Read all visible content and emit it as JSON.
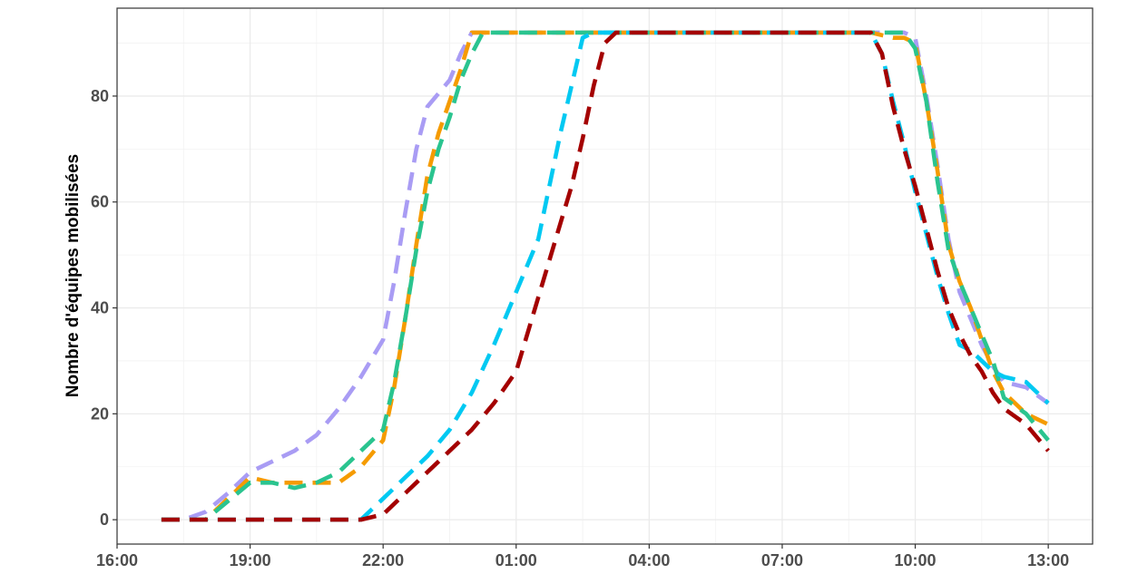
{
  "chart_data": {
    "type": "line",
    "title": "",
    "xlabel": "",
    "ylabel": "Nombre d'équipes mobilisées",
    "x_unit": "hours since 16:00 (x tick labels are clock times)",
    "x_ticks": [
      {
        "value": 0,
        "label": "16:00"
      },
      {
        "value": 3,
        "label": "19:00"
      },
      {
        "value": 6,
        "label": "22:00"
      },
      {
        "value": 9,
        "label": "01:00"
      },
      {
        "value": 12,
        "label": "04:00"
      },
      {
        "value": 15,
        "label": "07:00"
      },
      {
        "value": 18,
        "label": "10:00"
      },
      {
        "value": 21,
        "label": "13:00"
      }
    ],
    "xlim": [
      0,
      22
    ],
    "y_ticks": [
      0,
      20,
      40,
      60,
      80
    ],
    "ylim": [
      -4.6,
      96.6
    ],
    "grid": true,
    "legend": "none",
    "line_style": "dashed",
    "series": [
      {
        "color": "#a99cf4",
        "points": [
          [
            1,
            0
          ],
          [
            1.5,
            0
          ],
          [
            2,
            1.5
          ],
          [
            2.5,
            5
          ],
          [
            3,
            9
          ],
          [
            3.5,
            11
          ],
          [
            4,
            13
          ],
          [
            4.5,
            16
          ],
          [
            5,
            21
          ],
          [
            5.5,
            27
          ],
          [
            6,
            34
          ],
          [
            6.25,
            45
          ],
          [
            6.5,
            58
          ],
          [
            6.75,
            70
          ],
          [
            7,
            78
          ],
          [
            7.5,
            83
          ],
          [
            7.75,
            88
          ],
          [
            8,
            92
          ],
          [
            8.5,
            92
          ],
          [
            9,
            92
          ],
          [
            10,
            92
          ],
          [
            11,
            92
          ],
          [
            12,
            92
          ],
          [
            13,
            92
          ],
          [
            14,
            92
          ],
          [
            15,
            92
          ],
          [
            16,
            92
          ],
          [
            17,
            92
          ],
          [
            17.5,
            92
          ],
          [
            17.75,
            92
          ],
          [
            18,
            91
          ],
          [
            18.25,
            80
          ],
          [
            18.5,
            67
          ],
          [
            18.75,
            53
          ],
          [
            19,
            43
          ],
          [
            19.25,
            38
          ],
          [
            19.5,
            33
          ],
          [
            19.75,
            29
          ],
          [
            20,
            26
          ],
          [
            20.5,
            25
          ],
          [
            21,
            22
          ]
        ]
      },
      {
        "color": "#f59b00",
        "points": [
          [
            1,
            0
          ],
          [
            1.5,
            0
          ],
          [
            2,
            0
          ],
          [
            2.5,
            4
          ],
          [
            3,
            8
          ],
          [
            3.5,
            7
          ],
          [
            4,
            7
          ],
          [
            4.5,
            7
          ],
          [
            5,
            7
          ],
          [
            5.5,
            10
          ],
          [
            6,
            15
          ],
          [
            6.25,
            25
          ],
          [
            6.5,
            38
          ],
          [
            6.75,
            52
          ],
          [
            7,
            65
          ],
          [
            7.25,
            73
          ],
          [
            7.5,
            79
          ],
          [
            7.75,
            85
          ],
          [
            8,
            92
          ],
          [
            8.5,
            92
          ],
          [
            9,
            92
          ],
          [
            10,
            92
          ],
          [
            11,
            92
          ],
          [
            12,
            92
          ],
          [
            13,
            92
          ],
          [
            14,
            92
          ],
          [
            15,
            92
          ],
          [
            16,
            92
          ],
          [
            17,
            92
          ],
          [
            17.5,
            91
          ],
          [
            17.75,
            91
          ],
          [
            18,
            90
          ],
          [
            18.25,
            79
          ],
          [
            18.5,
            66
          ],
          [
            18.75,
            52
          ],
          [
            19,
            45
          ],
          [
            19.25,
            40
          ],
          [
            19.5,
            34
          ],
          [
            19.75,
            28
          ],
          [
            20,
            24
          ],
          [
            20.5,
            20
          ],
          [
            21,
            18
          ]
        ]
      },
      {
        "color": "#2ac48f",
        "points": [
          [
            1,
            0
          ],
          [
            1.5,
            0
          ],
          [
            2,
            0
          ],
          [
            2.5,
            3.5
          ],
          [
            3,
            7
          ],
          [
            3.5,
            7
          ],
          [
            4,
            6
          ],
          [
            4.5,
            7
          ],
          [
            5,
            9
          ],
          [
            5.5,
            13
          ],
          [
            6,
            17
          ],
          [
            6.25,
            26
          ],
          [
            6.5,
            38
          ],
          [
            6.75,
            51
          ],
          [
            7,
            62
          ],
          [
            7.25,
            70
          ],
          [
            7.5,
            76
          ],
          [
            7.75,
            83
          ],
          [
            8,
            88
          ],
          [
            8.25,
            92
          ],
          [
            8.5,
            92
          ],
          [
            9,
            92
          ],
          [
            10,
            92
          ],
          [
            11,
            92
          ],
          [
            12,
            92
          ],
          [
            13,
            92
          ],
          [
            14,
            92
          ],
          [
            15,
            92
          ],
          [
            16,
            92
          ],
          [
            17,
            92
          ],
          [
            17.5,
            92
          ],
          [
            17.75,
            92
          ],
          [
            18,
            89
          ],
          [
            18.25,
            79
          ],
          [
            18.5,
            64
          ],
          [
            18.75,
            51
          ],
          [
            19,
            45
          ],
          [
            19.25,
            40
          ],
          [
            19.5,
            35
          ],
          [
            19.75,
            30
          ],
          [
            20,
            23
          ],
          [
            20.5,
            20
          ],
          [
            21,
            15
          ]
        ]
      },
      {
        "color": "#00c9f2",
        "points": [
          [
            1,
            0
          ],
          [
            2,
            0
          ],
          [
            3,
            0
          ],
          [
            4,
            0
          ],
          [
            5,
            0
          ],
          [
            5.5,
            0
          ],
          [
            6,
            4
          ],
          [
            6.5,
            8
          ],
          [
            7,
            12
          ],
          [
            7.5,
            17
          ],
          [
            8,
            24
          ],
          [
            8.5,
            33
          ],
          [
            9,
            43
          ],
          [
            9.5,
            53
          ],
          [
            9.75,
            63
          ],
          [
            10,
            73
          ],
          [
            10.25,
            82
          ],
          [
            10.5,
            91
          ],
          [
            10.75,
            92
          ],
          [
            11,
            92
          ],
          [
            12,
            92
          ],
          [
            13,
            92
          ],
          [
            14,
            92
          ],
          [
            15,
            92
          ],
          [
            16,
            92
          ],
          [
            17,
            92
          ],
          [
            17.25,
            88
          ],
          [
            17.5,
            79
          ],
          [
            17.75,
            71
          ],
          [
            18,
            62
          ],
          [
            18.25,
            54
          ],
          [
            18.5,
            46
          ],
          [
            18.75,
            39
          ],
          [
            19,
            33
          ],
          [
            19.25,
            32
          ],
          [
            19.5,
            30
          ],
          [
            19.75,
            28
          ],
          [
            20,
            27
          ],
          [
            20.5,
            26
          ],
          [
            21,
            22
          ]
        ]
      },
      {
        "color": "#a40000",
        "points": [
          [
            1,
            0
          ],
          [
            2,
            0
          ],
          [
            3,
            0
          ],
          [
            4,
            0
          ],
          [
            5,
            0
          ],
          [
            5.5,
            0
          ],
          [
            6,
            1
          ],
          [
            6.5,
            5
          ],
          [
            7,
            9
          ],
          [
            7.5,
            13
          ],
          [
            8,
            17
          ],
          [
            8.5,
            22
          ],
          [
            9,
            28
          ],
          [
            9.25,
            35
          ],
          [
            9.5,
            42
          ],
          [
            9.75,
            49
          ],
          [
            10,
            56
          ],
          [
            10.25,
            63
          ],
          [
            10.5,
            72
          ],
          [
            10.75,
            82
          ],
          [
            11,
            90
          ],
          [
            11.25,
            92
          ],
          [
            11.5,
            92
          ],
          [
            12,
            92
          ],
          [
            13,
            92
          ],
          [
            14,
            92
          ],
          [
            15,
            92
          ],
          [
            16,
            92
          ],
          [
            17,
            92
          ],
          [
            17.25,
            88
          ],
          [
            17.5,
            78
          ],
          [
            17.75,
            70
          ],
          [
            18,
            63
          ],
          [
            18.25,
            55
          ],
          [
            18.5,
            47
          ],
          [
            18.75,
            40
          ],
          [
            19,
            35
          ],
          [
            19.25,
            31
          ],
          [
            19.5,
            28
          ],
          [
            19.75,
            24
          ],
          [
            20,
            21
          ],
          [
            20.5,
            18
          ],
          [
            21,
            13
          ]
        ]
      }
    ]
  }
}
